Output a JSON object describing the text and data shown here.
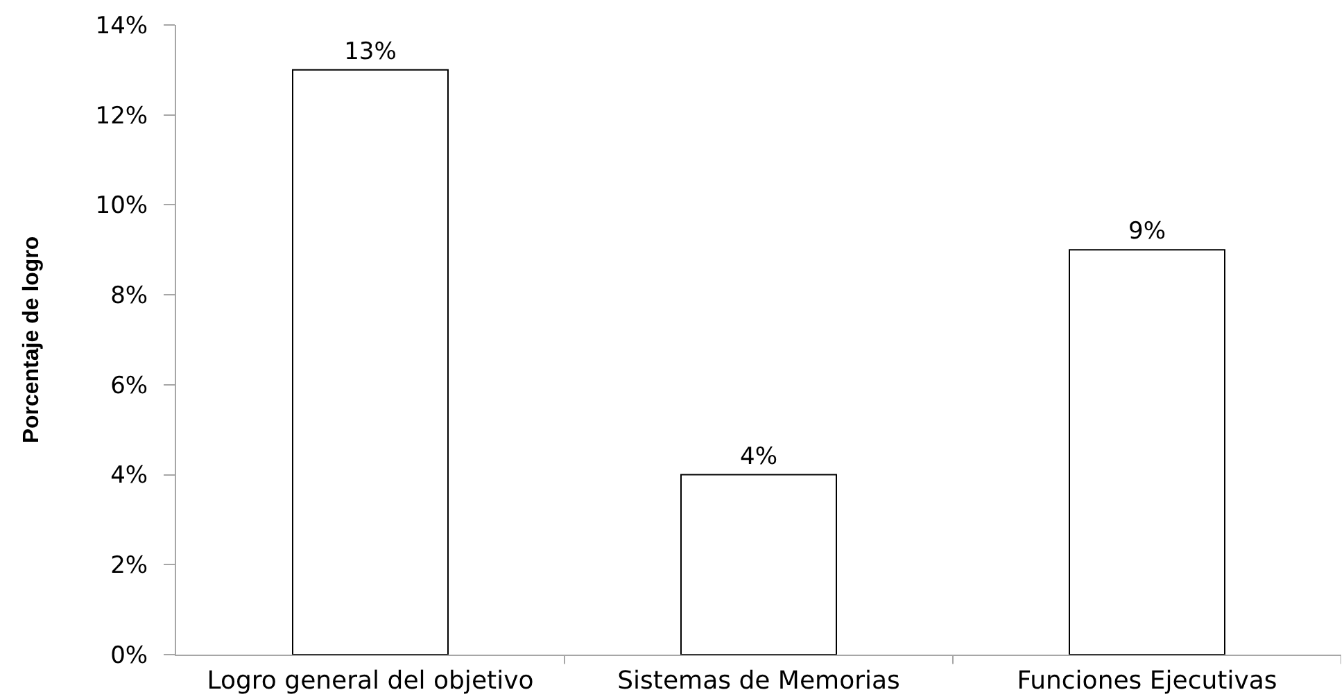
{
  "chart_data": {
    "type": "bar",
    "ylabel": "Porcentaje de logro",
    "categories": [
      "Logro general del objetivo",
      "Sistemas de Memorias",
      "Funciones Ejecutivas"
    ],
    "values": [
      13,
      4,
      9
    ],
    "value_labels": [
      "13%",
      "4%",
      "9%"
    ],
    "color": "#ffffff",
    "ylim": [
      0,
      14
    ],
    "yticks": [
      {
        "value": 0,
        "label": "0%"
      },
      {
        "value": 2,
        "label": "2%"
      },
      {
        "value": 4,
        "label": "4%"
      },
      {
        "value": 6,
        "label": "6%"
      },
      {
        "value": 8,
        "label": "8%"
      },
      {
        "value": 10,
        "label": "10%"
      },
      {
        "value": 12,
        "label": "12%"
      },
      {
        "value": 14,
        "label": "14%"
      }
    ],
    "grid": false
  }
}
